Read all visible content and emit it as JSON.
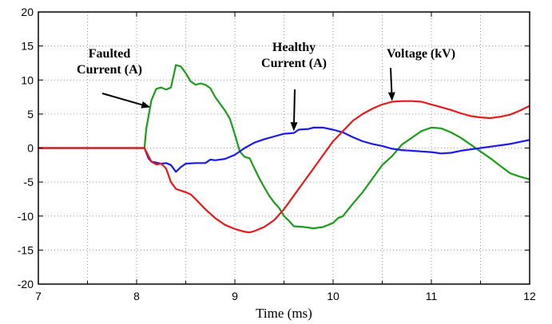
{
  "chart_data": {
    "type": "line",
    "xlabel": "Time (ms)",
    "ylabel": "",
    "xlim": [
      7,
      12
    ],
    "ylim": [
      -20,
      20
    ],
    "x_ticks": [
      7,
      8,
      9,
      10,
      11,
      12
    ],
    "y_ticks": [
      20,
      15,
      10,
      5,
      0,
      -5,
      -10,
      -15,
      -20
    ],
    "x_tick_labels": [
      "7",
      "8",
      "9",
      "10",
      "11",
      "12"
    ],
    "y_tick_labels": [
      "20",
      "15",
      "10",
      "5",
      "0",
      "-5",
      "-10",
      "-15",
      "-20"
    ],
    "grid": true,
    "legend": "none",
    "series": [
      {
        "color": "#1a9e1a",
        "points": [
          [
            7,
            0
          ],
          [
            8.08,
            0
          ],
          [
            8.1,
            3
          ],
          [
            8.15,
            7
          ],
          [
            8.2,
            8.7
          ],
          [
            8.25,
            8.9
          ],
          [
            8.3,
            8.6
          ],
          [
            8.35,
            8.9
          ],
          [
            8.4,
            12.2
          ],
          [
            8.45,
            12.0
          ],
          [
            8.5,
            11
          ],
          [
            8.55,
            9.8
          ],
          [
            8.6,
            9.3
          ],
          [
            8.65,
            9.5
          ],
          [
            8.7,
            9.3
          ],
          [
            8.75,
            8.8
          ],
          [
            8.8,
            7.5
          ],
          [
            8.85,
            6.5
          ],
          [
            8.9,
            5.5
          ],
          [
            8.95,
            4.3
          ],
          [
            9.0,
            2.0
          ],
          [
            9.05,
            -0.5
          ],
          [
            9.1,
            -1.3
          ],
          [
            9.15,
            -1.5
          ],
          [
            9.2,
            -3
          ],
          [
            9.25,
            -4.5
          ],
          [
            9.3,
            -5.8
          ],
          [
            9.35,
            -7
          ],
          [
            9.4,
            -8
          ],
          [
            9.45,
            -8.8
          ],
          [
            9.5,
            -10
          ],
          [
            9.55,
            -10.7
          ],
          [
            9.6,
            -11.5
          ],
          [
            9.7,
            -11.6
          ],
          [
            9.8,
            -11.8
          ],
          [
            9.9,
            -11.6
          ],
          [
            10.0,
            -11
          ],
          [
            10.05,
            -10.3
          ],
          [
            10.1,
            -10
          ],
          [
            10.2,
            -8.2
          ],
          [
            10.3,
            -6.5
          ],
          [
            10.4,
            -4.5
          ],
          [
            10.5,
            -2.5
          ],
          [
            10.6,
            -1.2
          ],
          [
            10.7,
            0.5
          ],
          [
            10.8,
            1.5
          ],
          [
            10.9,
            2.5
          ],
          [
            11.0,
            3.0
          ],
          [
            11.1,
            2.9
          ],
          [
            11.2,
            2.3
          ],
          [
            11.3,
            1.5
          ],
          [
            11.4,
            0.5
          ],
          [
            11.5,
            -0.5
          ],
          [
            11.6,
            -1.5
          ],
          [
            11.7,
            -2.6
          ],
          [
            11.8,
            -3.7
          ],
          [
            11.9,
            -4.2
          ],
          [
            12.0,
            -4.6
          ]
        ]
      },
      {
        "color": "#1a1aee",
        "points": [
          [
            7,
            0
          ],
          [
            8.08,
            0
          ],
          [
            8.12,
            -1.5
          ],
          [
            8.15,
            -2
          ],
          [
            8.25,
            -2.3
          ],
          [
            8.3,
            -2.2
          ],
          [
            8.35,
            -2.5
          ],
          [
            8.4,
            -3.5
          ],
          [
            8.45,
            -2.8
          ],
          [
            8.5,
            -2.3
          ],
          [
            8.6,
            -2.2
          ],
          [
            8.7,
            -2.2
          ],
          [
            8.75,
            -1.7
          ],
          [
            8.8,
            -1.8
          ],
          [
            8.9,
            -1.6
          ],
          [
            9.0,
            -1.0
          ],
          [
            9.1,
            0
          ],
          [
            9.2,
            0.8
          ],
          [
            9.3,
            1.3
          ],
          [
            9.4,
            1.7
          ],
          [
            9.5,
            2.1
          ],
          [
            9.6,
            2.2
          ],
          [
            9.65,
            2.7
          ],
          [
            9.75,
            2.8
          ],
          [
            9.8,
            3.0
          ],
          [
            9.9,
            3.0
          ],
          [
            10.0,
            2.7
          ],
          [
            10.1,
            2.3
          ],
          [
            10.2,
            1.6
          ],
          [
            10.3,
            1.0
          ],
          [
            10.4,
            0.6
          ],
          [
            10.5,
            0.3
          ],
          [
            10.6,
            -0.1
          ],
          [
            10.7,
            -0.3
          ],
          [
            10.8,
            -0.4
          ],
          [
            10.9,
            -0.5
          ],
          [
            11.0,
            -0.6
          ],
          [
            11.1,
            -0.8
          ],
          [
            11.2,
            -0.7
          ],
          [
            11.3,
            -0.4
          ],
          [
            11.4,
            -0.2
          ],
          [
            11.5,
            0
          ],
          [
            11.6,
            0.2
          ],
          [
            11.7,
            0.4
          ],
          [
            11.8,
            0.6
          ],
          [
            11.9,
            0.9
          ],
          [
            12.0,
            1.2
          ]
        ]
      },
      {
        "color": "#e61a1a",
        "points": [
          [
            7,
            0
          ],
          [
            8.08,
            0
          ],
          [
            8.15,
            -2
          ],
          [
            8.2,
            -2.4
          ],
          [
            8.25,
            -2.3
          ],
          [
            8.3,
            -3
          ],
          [
            8.35,
            -5
          ],
          [
            8.4,
            -6
          ],
          [
            8.5,
            -6.5
          ],
          [
            8.55,
            -6.8
          ],
          [
            8.6,
            -7.5
          ],
          [
            8.7,
            -9
          ],
          [
            8.8,
            -10.3
          ],
          [
            8.9,
            -11.3
          ],
          [
            9.0,
            -11.9
          ],
          [
            9.1,
            -12.3
          ],
          [
            9.15,
            -12.4
          ],
          [
            9.2,
            -12.2
          ],
          [
            9.3,
            -11.6
          ],
          [
            9.4,
            -10.6
          ],
          [
            9.5,
            -9
          ],
          [
            9.6,
            -7
          ],
          [
            9.7,
            -5
          ],
          [
            9.8,
            -3
          ],
          [
            9.9,
            -1
          ],
          [
            10.0,
            1.0
          ],
          [
            10.1,
            2.5
          ],
          [
            10.2,
            4.0
          ],
          [
            10.3,
            5.0
          ],
          [
            10.4,
            5.8
          ],
          [
            10.5,
            6.4
          ],
          [
            10.6,
            6.8
          ],
          [
            10.7,
            6.9
          ],
          [
            10.8,
            6.9
          ],
          [
            10.9,
            6.8
          ],
          [
            11.0,
            6.4
          ],
          [
            11.1,
            6.0
          ],
          [
            11.2,
            5.6
          ],
          [
            11.3,
            5.1
          ],
          [
            11.4,
            4.7
          ],
          [
            11.5,
            4.5
          ],
          [
            11.6,
            4.4
          ],
          [
            11.7,
            4.6
          ],
          [
            11.8,
            4.9
          ],
          [
            11.9,
            5.5
          ],
          [
            12.0,
            6.2
          ]
        ]
      }
    ],
    "annotations": [
      {
        "lines": [
          "Faulted",
          "Current (A)"
        ],
        "target": [
          8.14,
          6.0
        ]
      },
      {
        "lines": [
          "Healthy",
          "Current (A)"
        ],
        "target": [
          9.6,
          2.5
        ]
      },
      {
        "lines": [
          "Voltage (kV)"
        ],
        "target": [
          10.6,
          6.9
        ]
      }
    ]
  }
}
